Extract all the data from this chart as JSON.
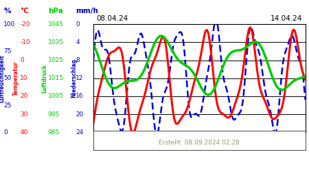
{
  "title_left": "08.04.24",
  "title_right": "14.04.24",
  "footer": "Erstellt: 08.09.2024 02:28",
  "col1_unit": "%",
  "col1_color": "#0000cc",
  "col1_ticks": [
    100,
    75,
    50,
    25,
    0
  ],
  "col2_unit": "°C",
  "col2_color": "#ff0000",
  "col2_ticks": [
    40,
    30,
    20,
    10,
    0,
    -10,
    -20
  ],
  "col3_unit": "hPa",
  "col3_color": "#00cc00",
  "col3_ticks": [
    1045,
    1035,
    1025,
    1015,
    1005,
    995,
    985
  ],
  "col4_unit": "mm/h",
  "col4_color": "#0000cc",
  "col4_ticks": [
    24,
    20,
    16,
    12,
    8,
    4,
    0
  ],
  "ylabel_luftfeuchtigkeit": "Luftfeuchtigkeit",
  "ylabel_temperatur": "Temperatur",
  "ylabel_luftdruck": "Luftdruck",
  "ylabel_niederschlag": "Niederschlag",
  "background_color": "#ffffff",
  "line_blue_color": "#0000dd",
  "line_red_color": "#ff0000",
  "line_green_color": "#00cc00",
  "footer_color": "#999966",
  "n_points": 300,
  "hpa_min": 985,
  "hpa_max": 1045,
  "grid_linewidth": 0.7,
  "blue_linewidth": 1.8,
  "red_linewidth": 2.2,
  "green_linewidth": 2.5
}
